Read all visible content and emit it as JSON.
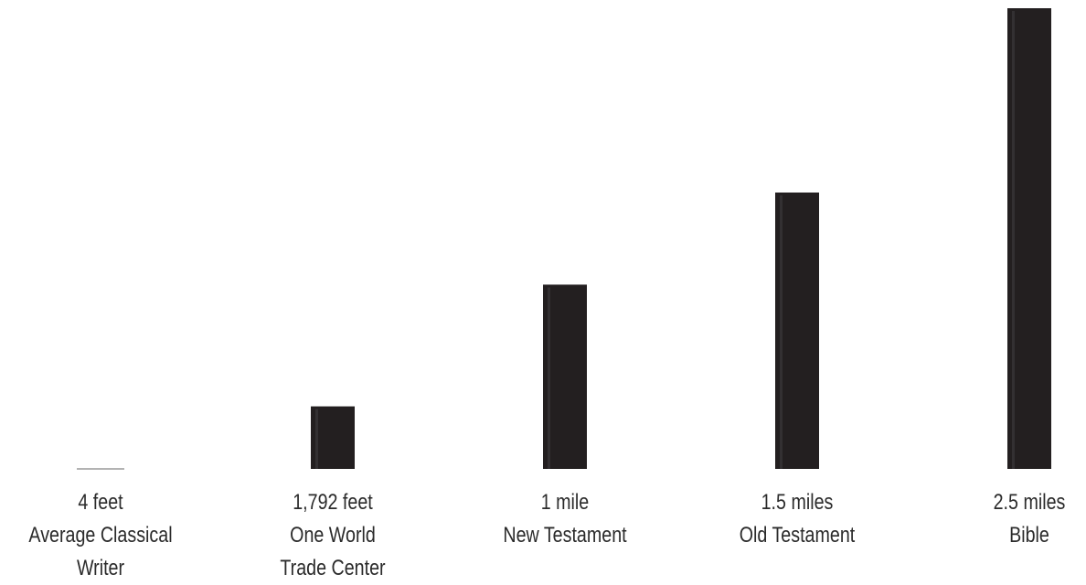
{
  "chart_data": {
    "type": "bar",
    "title": "",
    "xlabel": "",
    "ylabel": "",
    "unit": "miles",
    "ylim": [
      0,
      2.5
    ],
    "grid": false,
    "legend": "none",
    "colors": {
      "bar": "#231f20",
      "bar_highlight": "#333032",
      "text": "#2b2b2b",
      "thin_line": "#9a9a9a"
    },
    "categories": [
      {
        "value_label": "4 feet",
        "name_lines": [
          "Average Classical",
          "Writer"
        ]
      },
      {
        "value_label": "1,792 feet",
        "name_lines": [
          "One World",
          "Trade Center"
        ]
      },
      {
        "value_label": "1 mile",
        "name_lines": [
          "New Testament"
        ]
      },
      {
        "value_label": "1.5 miles",
        "name_lines": [
          "Old Testament"
        ]
      },
      {
        "value_label": "2.5 miles",
        "name_lines": [
          "Bible"
        ]
      }
    ],
    "values": [
      0.00076,
      0.3394,
      1,
      1.5,
      2.5
    ]
  }
}
